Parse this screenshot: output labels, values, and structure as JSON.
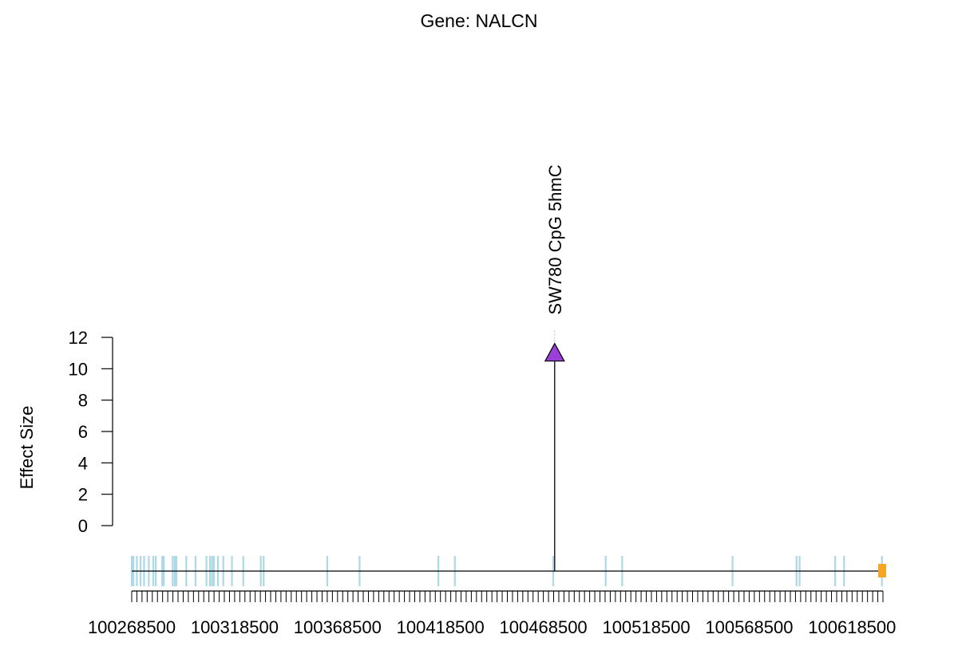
{
  "chart_data": {
    "type": "lollipop",
    "title": "Gene: NALCN",
    "ylabel": "Effect Size",
    "xlabel": "",
    "ylim": [
      0,
      12
    ],
    "yticks": [
      0,
      2,
      4,
      6,
      8,
      10,
      12
    ],
    "xlim": [
      100268500,
      100633500
    ],
    "xtick_labels": [
      100268500,
      100318500,
      100368500,
      100418500,
      100468500,
      100518500,
      100568500,
      100618500
    ],
    "points": [
      {
        "x": 100474000,
        "y": 11,
        "label": "SW780 CpG 5hmC",
        "shape": "triangle",
        "color": "#9b3fd6"
      }
    ],
    "exons": [
      100268500,
      100268900,
      100269300,
      100271000,
      100272800,
      100274500,
      100276800,
      100279000,
      100280200,
      100283300,
      100284100,
      100288400,
      100289400,
      100290200,
      100295000,
      100299500,
      100304800,
      100306500,
      100307500,
      100308400,
      100310400,
      100313000,
      100317200,
      100322700,
      100331200,
      100332600,
      100363500,
      100379200,
      100417500,
      100425500,
      100473300,
      100498800,
      100506800,
      100560400,
      100591500,
      100593000,
      100610300,
      100614600,
      100633000
    ],
    "colors": {
      "exon": "#add8e6",
      "axis": "#000000",
      "end_marker": "#f5a623",
      "point": "#9b3fd6"
    }
  }
}
